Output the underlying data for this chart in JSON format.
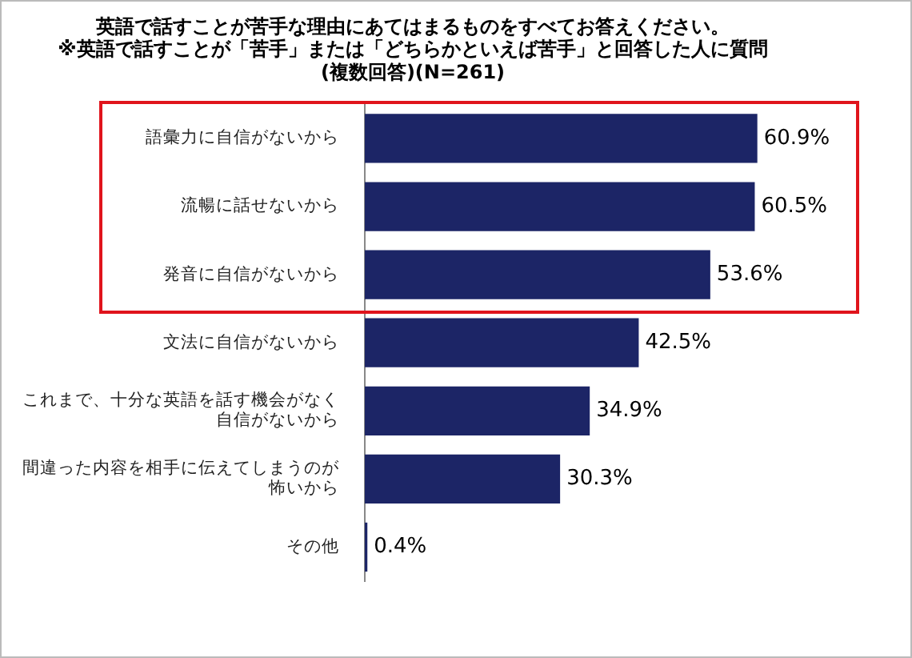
{
  "chart_data": {
    "type": "bar",
    "orientation": "horizontal",
    "title": "英語で話すことが苦手な理由にあてはまるものをすべてお答えください。",
    "subtitle": "※英語で話すことが「苦手」または「どちらかといえば苦手」と回答した人に質問\n(複数回答)(N=261)",
    "categories": [
      "語彙力に自信がないから",
      "流暢に話せないから",
      "発音に自信がないから",
      "文法に自信がないから",
      "これまで、十分な英語を話す機会がなく自信がないから",
      "間違った内容を相手に伝えてしまうのが怖いから",
      "その他"
    ],
    "values": [
      60.9,
      60.5,
      53.6,
      42.5,
      34.9,
      30.3,
      0.4
    ],
    "color": "#1c2566",
    "value_labels": [
      "60.9%",
      "60.5%",
      "53.6%",
      "42.5%",
      "34.9%",
      "30.3%",
      "0.4%"
    ],
    "grid": false,
    "legend": false
  }
}
